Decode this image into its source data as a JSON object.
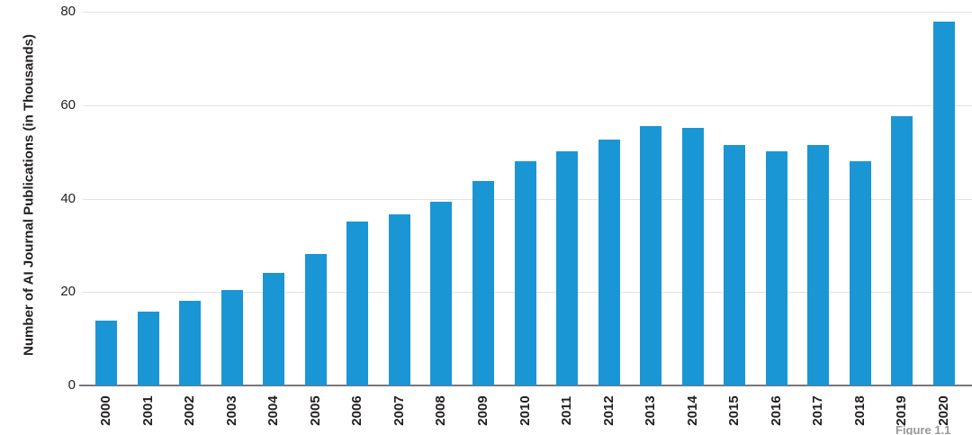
{
  "chart_data": {
    "type": "bar",
    "title": "",
    "xlabel": "",
    "ylabel": "Number of AI Journal Publications (in Thousands)",
    "categories": [
      "2000",
      "2001",
      "2002",
      "2003",
      "2004",
      "2005",
      "2006",
      "2007",
      "2008",
      "2009",
      "2010",
      "2011",
      "2012",
      "2013",
      "2014",
      "2015",
      "2016",
      "2017",
      "2018",
      "2019",
      "2020"
    ],
    "values": [
      13.9,
      15.8,
      18.1,
      20.4,
      24.1,
      28.2,
      35.1,
      36.6,
      39.4,
      43.7,
      48.0,
      50.2,
      52.6,
      55.6,
      55.1,
      51.4,
      50.1,
      51.5,
      48.0,
      57.6,
      77.8
    ],
    "yticks": [
      0,
      20,
      40,
      60,
      80
    ],
    "ylim": [
      0,
      80
    ],
    "grid": true,
    "legend": "none",
    "bar_color": "#1b96d4",
    "gridline_color": "#e2e2e2",
    "axis_line_color": "#77787b",
    "text_color": "#231f20"
  },
  "footer": {
    "caption": "Figure 1.1"
  }
}
